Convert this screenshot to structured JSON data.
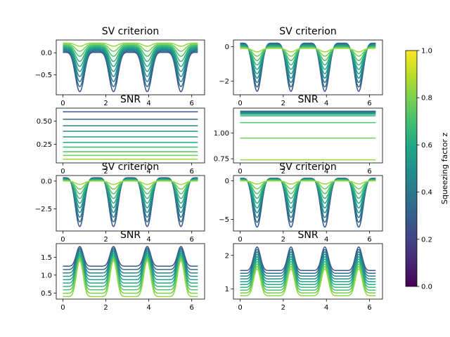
{
  "colorbar": {
    "label": "Squeezing factor z",
    "ticks": [
      "0.0",
      "0.2",
      "0.4",
      "0.6",
      "0.8",
      "1.0"
    ],
    "tick_values": [
      0.0,
      0.2,
      0.4,
      0.6,
      0.8,
      1.0
    ],
    "range": [
      0,
      1
    ],
    "colormap": "viridis"
  },
  "chart_data": [
    {
      "type": "line",
      "title": "SV criterion",
      "xlabel": "",
      "ylabel": "",
      "xlim": [
        -0.31,
        6.6
      ],
      "ylim": [
        -0.95,
        0.29
      ],
      "x_ticks": [
        "0",
        "2",
        "4",
        "6"
      ],
      "x_tick_values": [
        0,
        2,
        4,
        6
      ],
      "y_ticks": [
        "−0.5",
        "0.0"
      ],
      "y_tick_values": [
        -0.5,
        0.0
      ],
      "series_count": 10,
      "series_z": [
        0.27,
        0.35,
        0.42,
        0.48,
        0.54,
        0.6,
        0.66,
        0.72,
        0.78,
        0.84
      ],
      "curve": {
        "form": "periodic_dips",
        "period_x": 1.5708,
        "x_range": [
          0,
          6.283
        ],
        "max": [
          0.01,
          0.22
        ],
        "min": [
          -0.88,
          0.15
        ]
      }
    },
    {
      "type": "line",
      "title": "SV criterion",
      "xlabel": "",
      "ylabel": "",
      "xlim": [
        -0.31,
        6.6
      ],
      "ylim": [
        -2.78,
        0.38
      ],
      "x_ticks": [
        "0",
        "2",
        "4",
        "6"
      ],
      "x_tick_values": [
        0,
        2,
        4,
        6
      ],
      "y_ticks": [
        "−2",
        "0"
      ],
      "y_tick_values": [
        -2,
        0
      ],
      "series_count": 10,
      "series_z": [
        0.27,
        0.35,
        0.42,
        0.48,
        0.54,
        0.6,
        0.66,
        0.72,
        0.78,
        0.84
      ],
      "curve": {
        "form": "periodic_dips",
        "period_x": 1.5708,
        "x_range": [
          0,
          6.283
        ],
        "max": [
          0.2,
          -0.1
        ],
        "min": [
          -2.58,
          -0.3
        ]
      }
    },
    {
      "type": "line",
      "title": "SNR",
      "xlabel": "",
      "ylabel": "",
      "xlim": [
        -0.31,
        6.6
      ],
      "ylim": [
        0.05,
        0.64
      ],
      "x_ticks": [
        "0",
        "2",
        "4",
        "6"
      ],
      "x_tick_values": [
        0,
        2,
        4,
        6
      ],
      "y_ticks": [
        "0.25",
        "0.50"
      ],
      "y_tick_values": [
        0.25,
        0.5
      ],
      "series_count": 10,
      "series_z": [
        0.27,
        0.35,
        0.42,
        0.48,
        0.54,
        0.6,
        0.66,
        0.72,
        0.78,
        0.84
      ],
      "curve": {
        "form": "constant",
        "x_range": [
          0,
          6.283
        ],
        "values": [
          0.6,
          0.52,
          0.45,
          0.39,
          0.33,
          0.27,
          0.22,
          0.17,
          0.13,
          0.09
        ]
      }
    },
    {
      "type": "line",
      "title": "SNR",
      "xlabel": "",
      "ylabel": "",
      "xlim": [
        -0.31,
        6.6
      ],
      "ylim": [
        0.71,
        1.24
      ],
      "x_ticks": [
        "0",
        "2",
        "4",
        "6"
      ],
      "x_tick_values": [
        0,
        2,
        4,
        6
      ],
      "y_ticks": [
        "0.75",
        "1.00"
      ],
      "y_tick_values": [
        0.75,
        1.0
      ],
      "series_count": 10,
      "series_z": [
        0.27,
        0.35,
        0.42,
        0.48,
        0.54,
        0.6,
        0.66,
        0.72,
        0.78,
        0.84
      ],
      "curve": {
        "form": "constant",
        "x_range": [
          0,
          6.283
        ],
        "values": [
          1.21,
          1.205,
          1.2,
          1.195,
          1.19,
          1.18,
          1.165,
          1.1,
          0.95,
          0.74
        ]
      }
    },
    {
      "type": "line",
      "title": "SV criterion",
      "xlabel": "",
      "ylabel": "",
      "xlim": [
        -0.31,
        6.6
      ],
      "ylim": [
        -4.5,
        0.5
      ],
      "x_ticks": [
        "0",
        "2",
        "4",
        "6"
      ],
      "x_tick_values": [
        0,
        2,
        4,
        6
      ],
      "y_ticks": [
        "−2.5",
        "0.0"
      ],
      "y_tick_values": [
        -2.5,
        0.0
      ],
      "series_count": 10,
      "series_z": [
        0.27,
        0.35,
        0.42,
        0.48,
        0.54,
        0.6,
        0.66,
        0.72,
        0.78,
        0.84
      ],
      "curve": {
        "form": "periodic_dips",
        "period_x": 1.5708,
        "x_range": [
          0,
          6.283
        ],
        "max": [
          0.3,
          0.0
        ],
        "min": [
          -4.1,
          -0.3
        ]
      }
    },
    {
      "type": "line",
      "title": "SV criterion",
      "xlabel": "",
      "ylabel": "",
      "xlim": [
        -0.31,
        6.6
      ],
      "ylim": [
        -6.5,
        0.7
      ],
      "x_ticks": [
        "0",
        "2",
        "4",
        "6"
      ],
      "x_tick_values": [
        0,
        2,
        4,
        6
      ],
      "y_ticks": [
        "−5",
        "0"
      ],
      "y_tick_values": [
        -5,
        0
      ],
      "series_count": 10,
      "series_z": [
        0.27,
        0.35,
        0.42,
        0.48,
        0.54,
        0.6,
        0.66,
        0.72,
        0.78,
        0.84
      ],
      "curve": {
        "form": "periodic_dips",
        "period_x": 1.5708,
        "x_range": [
          0,
          6.283
        ],
        "max": [
          0.35,
          0.0
        ],
        "min": [
          -6.0,
          -0.4
        ]
      }
    },
    {
      "type": "line",
      "title": "SNR",
      "xlabel": "",
      "ylabel": "",
      "xlim": [
        -0.31,
        6.6
      ],
      "ylim": [
        0.33,
        1.88
      ],
      "x_ticks": [
        "0",
        "2",
        "4",
        "6"
      ],
      "x_tick_values": [
        0,
        2,
        4,
        6
      ],
      "y_ticks": [
        "0.5",
        "1.0",
        "1.5"
      ],
      "y_tick_values": [
        0.5,
        1.0,
        1.5
      ],
      "series_count": 10,
      "series_z": [
        0.27,
        0.35,
        0.42,
        0.48,
        0.54,
        0.6,
        0.66,
        0.72,
        0.78,
        0.84
      ],
      "curve": {
        "form": "periodic_peaks",
        "period_x": 1.5708,
        "peak_offset_x": 0.785,
        "x_range": [
          0,
          6.283
        ],
        "base": [
          1.25,
          0.4
        ],
        "peak": [
          1.8,
          1.4
        ]
      }
    },
    {
      "type": "line",
      "title": "SNR",
      "xlabel": "",
      "ylabel": "",
      "xlim": [
        -0.31,
        6.6
      ],
      "ylim": [
        0.7,
        2.35
      ],
      "x_ticks": [
        "0",
        "2",
        "4",
        "6"
      ],
      "x_tick_values": [
        0,
        2,
        4,
        6
      ],
      "y_ticks": [
        "1",
        "2"
      ],
      "y_tick_values": [
        1,
        2
      ],
      "series_count": 10,
      "series_z": [
        0.27,
        0.35,
        0.42,
        0.48,
        0.54,
        0.6,
        0.66,
        0.72,
        0.78,
        0.84
      ],
      "curve": {
        "form": "periodic_peaks",
        "period_x": 1.5708,
        "peak_offset_x": 0.785,
        "x_range": [
          0,
          6.283
        ],
        "base": [
          1.55,
          0.8
        ],
        "peak": [
          2.25,
          1.6
        ]
      }
    }
  ]
}
